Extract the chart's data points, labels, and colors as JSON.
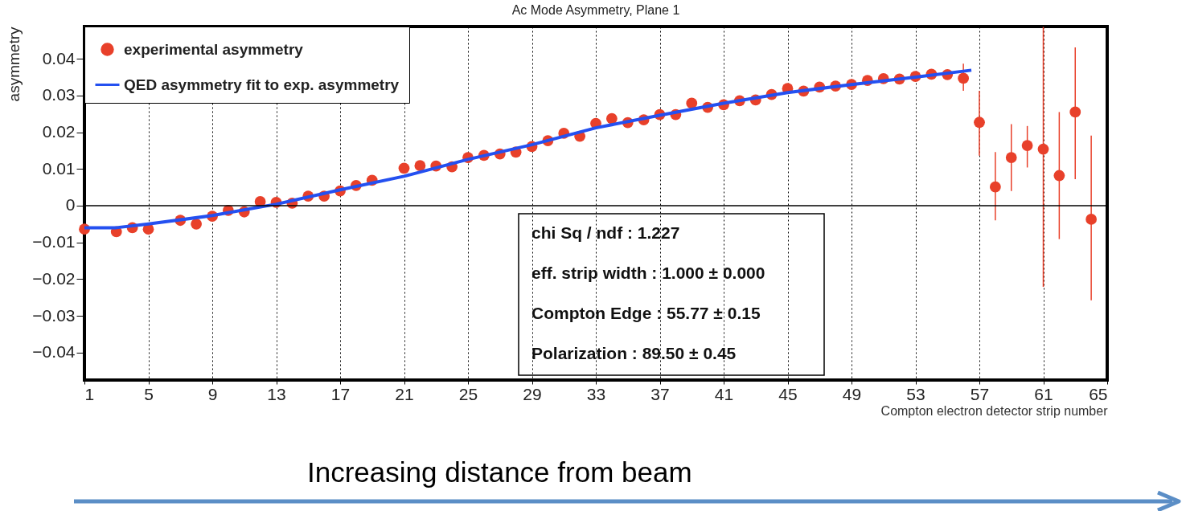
{
  "chart_data": {
    "type": "scatter",
    "title": "Ac Mode Asymmetry, Plane 1",
    "xlabel": "Compton electron detector strip number",
    "ylabel": "asymmetry",
    "xlim": [
      1,
      65
    ],
    "xticks": [
      1,
      5,
      9,
      13,
      17,
      21,
      25,
      29,
      33,
      37,
      41,
      45,
      49,
      53,
      57,
      61,
      65
    ],
    "ylim": [
      -0.0475,
      0.0488
    ],
    "yticks": [
      -0.04,
      -0.03,
      -0.02,
      -0.01,
      0,
      0.01,
      0.02,
      0.03,
      0.04
    ],
    "grid": "x",
    "legend": "top left",
    "ref_lines": [
      {
        "axis": "y",
        "value": 0,
        "color": "#000000"
      }
    ],
    "series": [
      {
        "name": "experimental asymmetry",
        "color": "#e8402a",
        "marker": "circle",
        "x": [
          1,
          3,
          4,
          5,
          7,
          8,
          9,
          10,
          11,
          12,
          13,
          14,
          15,
          16,
          17,
          18,
          19,
          21,
          22,
          23,
          24,
          25,
          26,
          27,
          28,
          29,
          30,
          31,
          32,
          33,
          34,
          35,
          36,
          37,
          38,
          39,
          40,
          41,
          42,
          43,
          44,
          45,
          46,
          47,
          48,
          49,
          50,
          51,
          52,
          53,
          54,
          55,
          56,
          57,
          58,
          59,
          60,
          61,
          62,
          63,
          64
        ],
        "values": [
          -0.0064,
          -0.0071,
          -0.006,
          -0.0064,
          -0.004,
          -0.005,
          -0.0029,
          -0.0013,
          -0.0017,
          0.0011,
          0.0009,
          0.0007,
          0.0026,
          0.0026,
          0.004,
          0.0055,
          0.0069,
          0.0102,
          0.0109,
          0.0108,
          0.0106,
          0.0131,
          0.0137,
          0.0141,
          0.0146,
          0.0161,
          0.0177,
          0.0197,
          0.0189,
          0.0224,
          0.0237,
          0.0226,
          0.0234,
          0.0248,
          0.0248,
          0.0279,
          0.0268,
          0.0275,
          0.0286,
          0.0288,
          0.0303,
          0.0319,
          0.0312,
          0.0323,
          0.0326,
          0.033,
          0.0341,
          0.0346,
          0.0345,
          0.0352,
          0.0358,
          0.0357,
          0.0347,
          0.0227,
          0.0051,
          0.0131,
          0.0164,
          0.0154,
          0.0082,
          0.0255,
          -0.0037
        ],
        "errors": [
          null,
          null,
          null,
          null,
          null,
          null,
          null,
          null,
          null,
          null,
          null,
          null,
          null,
          null,
          null,
          null,
          null,
          null,
          null,
          null,
          null,
          null,
          null,
          null,
          null,
          null,
          null,
          null,
          null,
          null,
          null,
          null,
          null,
          null,
          null,
          null,
          null,
          null,
          null,
          null,
          null,
          null,
          null,
          null,
          null,
          null,
          null,
          null,
          null,
          null,
          null,
          null,
          [
            0.0313,
            0.0387
          ],
          [
            0.0136,
            0.0313
          ],
          [
            -0.004,
            0.0146
          ],
          [
            0.004,
            0.0222
          ],
          [
            0.0104,
            0.0217
          ],
          [
            -0.0221,
            0.0487
          ],
          [
            -0.0091,
            0.0255
          ],
          [
            0.0072,
            0.0431
          ],
          [
            -0.0258,
            0.0191
          ]
        ]
      },
      {
        "type": "line",
        "name": "QED asymmetry fit to exp. asymmetry",
        "color": "#2450f0",
        "marker": "none",
        "x": [
          1,
          3,
          5,
          9,
          13,
          17,
          21,
          25,
          29,
          33,
          37,
          41,
          45,
          49,
          53,
          56.5
        ],
        "values": [
          -0.006,
          -0.006,
          -0.005,
          -0.0027,
          0.0004,
          0.0043,
          0.008,
          0.0126,
          0.0166,
          0.0212,
          0.0246,
          0.0279,
          0.0308,
          0.033,
          0.035,
          0.0369
        ]
      }
    ],
    "annotations": [
      "chi Sq / ndf        : 1.227",
      "eff. strip width  : 1.000 ± 0.000",
      "Compton Edge : 55.77 ± 0.15",
      "Polarization       : 89.50 ± 0.45",
      "Increasing distance from beam"
    ]
  }
}
